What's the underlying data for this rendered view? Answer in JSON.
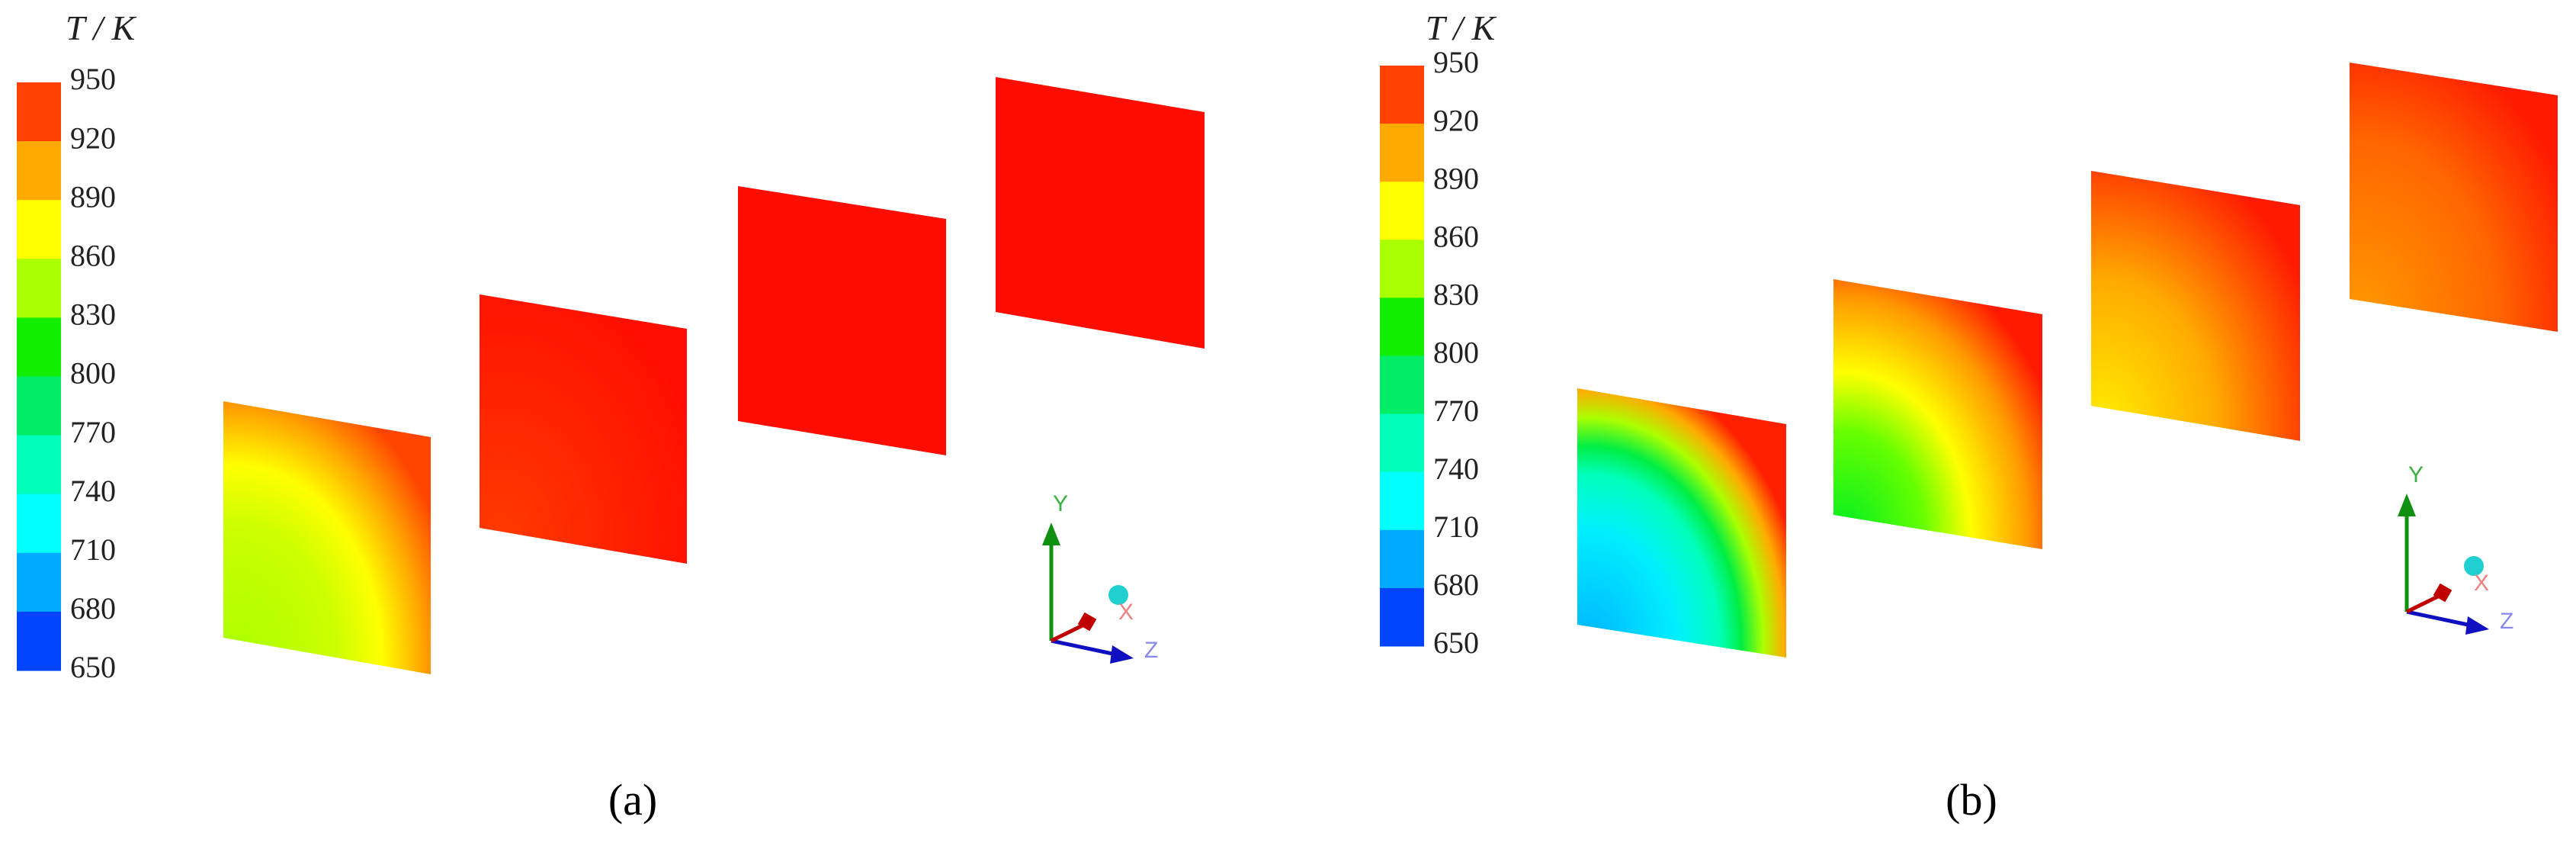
{
  "panels": [
    {
      "legend_title": "T / K",
      "ticks": [
        950,
        920,
        890,
        860,
        830,
        800,
        770,
        740,
        710,
        680,
        650
      ],
      "axes": {
        "y": "Y",
        "x": "X",
        "z": "Z"
      },
      "label": "(a)"
    },
    {
      "legend_title": "T / K",
      "ticks": [
        950,
        920,
        890,
        860,
        830,
        800,
        770,
        740,
        710,
        680,
        650
      ],
      "axes": {
        "y": "Y",
        "x": "X",
        "z": "Z"
      },
      "label": "(b)"
    }
  ]
}
